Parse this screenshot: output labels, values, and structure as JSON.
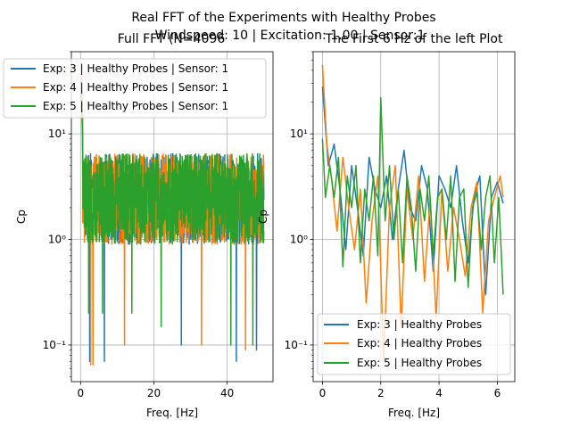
{
  "figure": {
    "suptitle_line1": "Real FFT of the Experiments with Healthy Probes",
    "suptitle_line2": "Windspeed: 10 | Excitation: 1.00 | Sensor:1"
  },
  "colors": {
    "series": [
      "#1f77b4",
      "#ff7f0e",
      "#2ca02c"
    ],
    "grid": "#b0b0b0"
  },
  "chart_data": [
    {
      "type": "line",
      "title": "Full FFT (N=4096",
      "xlabel": "Freq. [Hz]",
      "ylabel": "Cp",
      "xlim": [
        -2.5,
        52.5
      ],
      "ylim": [
        0.045,
        60
      ],
      "yscale": "log",
      "grid": true,
      "legend": "top-left",
      "xticks": [
        0,
        20,
        40
      ],
      "xtick_labels": [
        "0",
        "20",
        "40"
      ],
      "yticks": [
        0.1,
        1,
        10
      ],
      "ytick_labels": [
        "10⁻¹",
        "10⁰",
        "10¹"
      ],
      "series": [
        {
          "name": "Exp: 3 | Healthy Probes | Sensor: 1",
          "x_range": [
            0,
            50
          ],
          "peak": 36,
          "band": [
            0.9,
            6.5
          ],
          "dips": [
            [
              2.5,
              0.07
            ],
            [
              6.5,
              0.07
            ],
            [
              27.5,
              0.1
            ],
            [
              42.5,
              0.07
            ],
            [
              48,
              0.09
            ]
          ]
        },
        {
          "name": "Exp: 4 | Healthy Probes | Sensor: 1",
          "x_range": [
            0,
            50
          ],
          "peak": 45,
          "band": [
            0.9,
            6.5
          ],
          "dips": [
            [
              2.8,
              0.065
            ],
            [
              3.4,
              0.065
            ],
            [
              12,
              0.1
            ],
            [
              33,
              0.1
            ],
            [
              45,
              0.09
            ]
          ]
        },
        {
          "name": "Exp: 5 | Healthy Probes | Sensor: 1",
          "x_range": [
            0,
            50
          ],
          "peak": 24,
          "band": [
            0.9,
            6.5
          ],
          "dips": [
            [
              2.2,
              0.2
            ],
            [
              6,
              0.2
            ],
            [
              14,
              0.2
            ],
            [
              22,
              0.15
            ],
            [
              41,
              0.1
            ],
            [
              47,
              0.1
            ]
          ]
        }
      ]
    },
    {
      "type": "line",
      "title": "The First 6 Hz of the left Plot",
      "xlabel": "Freq. [Hz]",
      "ylabel": "Cp",
      "xlim": [
        -0.32,
        6.6
      ],
      "ylim": [
        0.045,
        60
      ],
      "yscale": "log",
      "grid": true,
      "legend": "bottom-right",
      "xticks": [
        0,
        2,
        4,
        6
      ],
      "xtick_labels": [
        "0",
        "2",
        "4",
        "6"
      ],
      "yticks": [
        0.1,
        1,
        10
      ],
      "ytick_labels": [
        "10⁻¹",
        "10⁰",
        "10¹"
      ],
      "series": [
        {
          "name": "Exp: 3 | Healthy Probes",
          "x": [
            0,
            0.2,
            0.4,
            0.6,
            0.8,
            1.0,
            1.2,
            1.4,
            1.6,
            1.8,
            2.0,
            2.2,
            2.4,
            2.6,
            2.8,
            3.0,
            3.2,
            3.4,
            3.6,
            3.8,
            4.0,
            4.2,
            4.4,
            4.6,
            4.8,
            5.0,
            5.2,
            5.4,
            5.6,
            5.8,
            6.0,
            6.2
          ],
          "y": [
            28,
            5,
            8,
            3,
            0.8,
            5,
            2,
            0.7,
            6,
            3,
            2,
            4,
            1,
            3,
            7,
            2,
            1.5,
            5,
            3,
            0.5,
            4,
            3,
            2,
            5,
            1.5,
            0.6,
            2.5,
            4,
            0.3,
            2.5,
            3.5,
            2.2
          ]
        },
        {
          "name": "Exp: 4 | Healthy Probes",
          "x": [
            0,
            0.15,
            0.3,
            0.5,
            0.7,
            0.9,
            1.1,
            1.3,
            1.5,
            1.7,
            1.9,
            2.1,
            2.3,
            2.5,
            2.7,
            2.9,
            3.1,
            3.3,
            3.5,
            3.7,
            3.9,
            4.1,
            4.3,
            4.5,
            4.7,
            4.9,
            5.1,
            5.3,
            5.5,
            5.7,
            5.9,
            6.1,
            6.2
          ],
          "y": [
            45,
            8,
            4,
            1.2,
            6,
            2,
            0.8,
            3,
            0.25,
            1.5,
            4,
            0.07,
            2,
            5,
            0.15,
            3,
            1,
            4,
            0.4,
            2.5,
            0.18,
            3,
            0.5,
            2,
            1,
            0.45,
            2,
            3.5,
            0.2,
            1.5,
            2.5,
            4,
            2.5
          ]
        },
        {
          "name": "Exp: 5 | Healthy Probes",
          "x": [
            0,
            0.1,
            0.25,
            0.4,
            0.55,
            0.7,
            0.85,
            1.0,
            1.15,
            1.3,
            1.45,
            1.6,
            1.75,
            1.9,
            2.0,
            2.15,
            2.3,
            2.45,
            2.6,
            2.75,
            2.9,
            3.05,
            3.2,
            3.35,
            3.5,
            3.65,
            3.8,
            3.95,
            4.1,
            4.25,
            4.4,
            4.55,
            4.7,
            4.85,
            5.0,
            5.15,
            5.3,
            5.45,
            5.6,
            5.75,
            5.9,
            6.05,
            6.2
          ],
          "y": [
            9,
            2.5,
            5,
            2.5,
            6,
            0.55,
            4,
            2,
            5,
            0.6,
            3,
            1.5,
            4,
            0.7,
            22,
            1.5,
            5,
            1,
            3,
            0.6,
            4,
            2,
            0.5,
            3,
            1.5,
            4,
            0.7,
            2.5,
            3,
            1,
            4,
            0.4,
            2.5,
            3,
            0.35,
            2,
            2.8,
            0.8,
            2.5,
            4,
            0.6,
            2.5,
            0.3
          ]
        }
      ]
    }
  ]
}
